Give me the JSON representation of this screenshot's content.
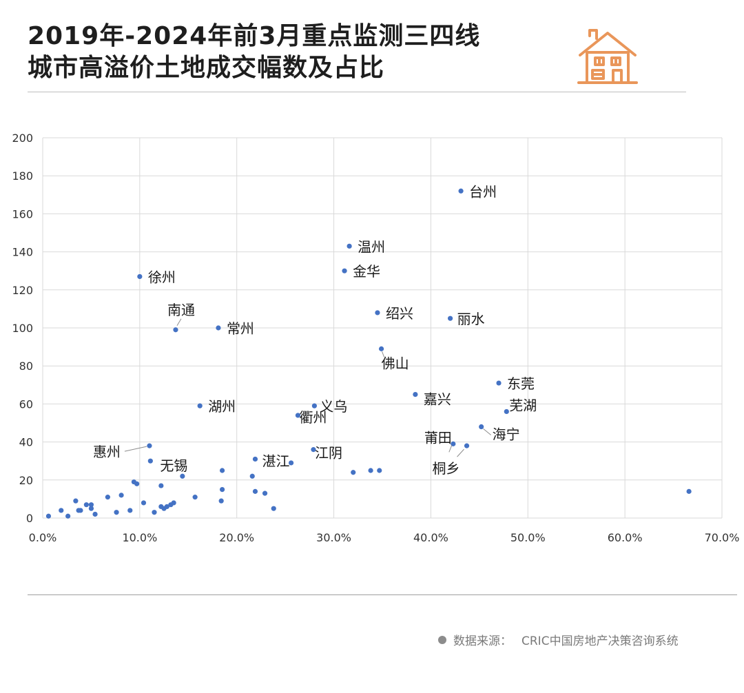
{
  "header": {
    "title_line1": "2019年-2024年前3月重点监测三四线",
    "title_line2": "城市高溢价土地成交幅数及占比"
  },
  "icons": {
    "logo": "house-icon",
    "bullet": "dot-icon"
  },
  "colors": {
    "marker": "#4472C4",
    "accent": "#E9965A",
    "gridline": "#d9d9d9"
  },
  "footer": {
    "source_label": "数据来源：",
    "source_name": "CRIC中国房地产决策咨询系统"
  },
  "chart_data": {
    "type": "scatter",
    "title": "",
    "xlabel": "",
    "ylabel": "",
    "xlim": [
      0,
      0.7
    ],
    "ylim": [
      0,
      200
    ],
    "x_ticks": [
      0,
      0.1,
      0.2,
      0.3,
      0.4,
      0.5,
      0.6,
      0.7
    ],
    "x_tick_labels": [
      "0.0%",
      "10.0%",
      "20.0%",
      "30.0%",
      "40.0%",
      "50.0%",
      "60.0%",
      "70.0%"
    ],
    "y_ticks": [
      0,
      20,
      40,
      60,
      80,
      100,
      120,
      140,
      160,
      180,
      200
    ],
    "y_tick_labels": [
      "0",
      "20",
      "40",
      "60",
      "80",
      "100",
      "120",
      "140",
      "160",
      "180",
      "200"
    ],
    "grid": true,
    "legend": "none",
    "points": [
      {
        "x": 0.431,
        "y": 172,
        "label": "台州"
      },
      {
        "x": 0.316,
        "y": 143,
        "label": "温州"
      },
      {
        "x": 0.311,
        "y": 130,
        "label": "金华"
      },
      {
        "x": 0.1,
        "y": 127,
        "label": "徐州"
      },
      {
        "x": 0.345,
        "y": 108,
        "label": "绍兴"
      },
      {
        "x": 0.42,
        "y": 105,
        "label": "丽水"
      },
      {
        "x": 0.137,
        "y": 99,
        "label": "南通"
      },
      {
        "x": 0.181,
        "y": 100,
        "label": "常州"
      },
      {
        "x": 0.349,
        "y": 89,
        "label": "佛山"
      },
      {
        "x": 0.47,
        "y": 71,
        "label": "东莞"
      },
      {
        "x": 0.384,
        "y": 65,
        "label": "嘉兴"
      },
      {
        "x": 0.478,
        "y": 56,
        "label": "芜湖"
      },
      {
        "x": 0.162,
        "y": 59,
        "label": "湖州"
      },
      {
        "x": 0.28,
        "y": 59,
        "label": "义乌"
      },
      {
        "x": 0.263,
        "y": 54,
        "label": "衢州"
      },
      {
        "x": 0.452,
        "y": 48,
        "label": "海宁"
      },
      {
        "x": 0.423,
        "y": 39,
        "label": "莆田"
      },
      {
        "x": 0.437,
        "y": 38,
        "label": "桐乡"
      },
      {
        "x": 0.11,
        "y": 38,
        "label": "惠州"
      },
      {
        "x": 0.111,
        "y": 30,
        "label": "无锡"
      },
      {
        "x": 0.219,
        "y": 31,
        "label": "湛江"
      },
      {
        "x": 0.279,
        "y": 36,
        "label": "江阴"
      },
      {
        "x": 0.256,
        "y": 29,
        "label": ""
      },
      {
        "x": 0.666,
        "y": 14,
        "label": ""
      },
      {
        "x": 0.32,
        "y": 24,
        "label": ""
      },
      {
        "x": 0.338,
        "y": 25,
        "label": ""
      },
      {
        "x": 0.347,
        "y": 25,
        "label": ""
      },
      {
        "x": 0.185,
        "y": 25,
        "label": ""
      },
      {
        "x": 0.185,
        "y": 15,
        "label": ""
      },
      {
        "x": 0.184,
        "y": 9,
        "label": ""
      },
      {
        "x": 0.216,
        "y": 22,
        "label": ""
      },
      {
        "x": 0.219,
        "y": 14,
        "label": ""
      },
      {
        "x": 0.229,
        "y": 13,
        "label": ""
      },
      {
        "x": 0.238,
        "y": 5,
        "label": ""
      },
      {
        "x": 0.144,
        "y": 22,
        "label": ""
      },
      {
        "x": 0.157,
        "y": 11,
        "label": ""
      },
      {
        "x": 0.122,
        "y": 17,
        "label": ""
      },
      {
        "x": 0.122,
        "y": 6,
        "label": ""
      },
      {
        "x": 0.125,
        "y": 5,
        "label": ""
      },
      {
        "x": 0.128,
        "y": 6,
        "label": ""
      },
      {
        "x": 0.132,
        "y": 7,
        "label": ""
      },
      {
        "x": 0.135,
        "y": 8,
        "label": ""
      },
      {
        "x": 0.115,
        "y": 3,
        "label": ""
      },
      {
        "x": 0.104,
        "y": 8,
        "label": ""
      },
      {
        "x": 0.094,
        "y": 19,
        "label": ""
      },
      {
        "x": 0.097,
        "y": 18,
        "label": ""
      },
      {
        "x": 0.09,
        "y": 4,
        "label": ""
      },
      {
        "x": 0.081,
        "y": 12,
        "label": ""
      },
      {
        "x": 0.076,
        "y": 3,
        "label": ""
      },
      {
        "x": 0.067,
        "y": 11,
        "label": ""
      },
      {
        "x": 0.054,
        "y": 2,
        "label": ""
      },
      {
        "x": 0.05,
        "y": 7,
        "label": ""
      },
      {
        "x": 0.05,
        "y": 5,
        "label": ""
      },
      {
        "x": 0.045,
        "y": 7,
        "label": ""
      },
      {
        "x": 0.039,
        "y": 4,
        "label": ""
      },
      {
        "x": 0.037,
        "y": 4,
        "label": ""
      },
      {
        "x": 0.034,
        "y": 9,
        "label": ""
      },
      {
        "x": 0.026,
        "y": 1,
        "label": ""
      },
      {
        "x": 0.019,
        "y": 4,
        "label": ""
      },
      {
        "x": 0.006,
        "y": 1,
        "label": ""
      }
    ]
  }
}
